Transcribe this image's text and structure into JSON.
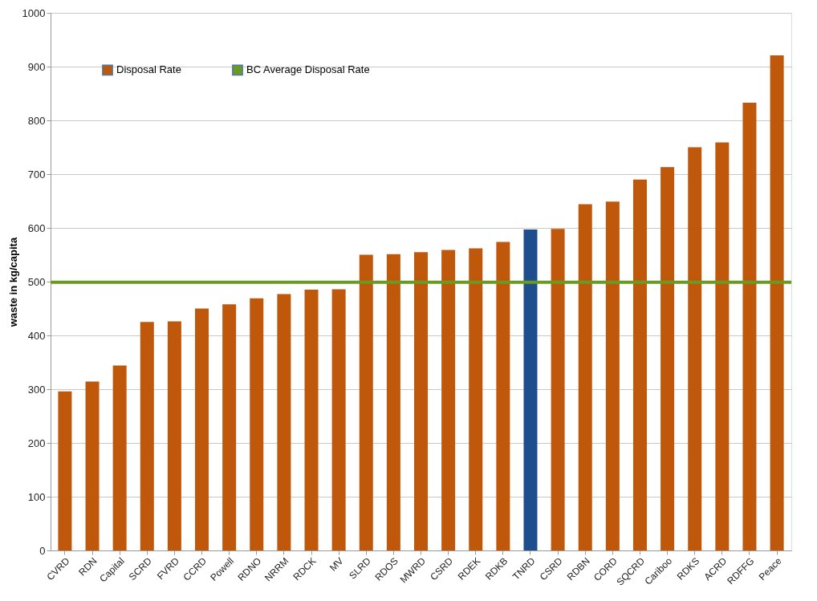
{
  "chart_data": {
    "type": "bar",
    "ylabel": "waste in kg/capita",
    "categories": [
      "CVRD",
      "RDN",
      "Capital",
      "SCRD",
      "FVRD",
      "CCRD",
      "Powell",
      "RDNO",
      "NRRM",
      "RDCK",
      "MV",
      "SLRD",
      "RDOS",
      "MWRD",
      "CSRD",
      "RDEK",
      "RDKB",
      "TNRD",
      "CSRD",
      "RDBN",
      "CORD",
      "SQCRD",
      "Cariboo",
      "RDKS",
      "ACRD",
      "RDFFG",
      "Peace"
    ],
    "series": [
      {
        "name": "Disposal Rate",
        "color": "#c0580c",
        "values": [
          296,
          314,
          344,
          425,
          426,
          450,
          458,
          469,
          477,
          485,
          486,
          550,
          551,
          555,
          559,
          562,
          574,
          597,
          598,
          644,
          649,
          690,
          713,
          750,
          759,
          833,
          921
        ],
        "colors": [
          "#c0580c",
          "#c0580c",
          "#c0580c",
          "#c0580c",
          "#c0580c",
          "#c0580c",
          "#c0580c",
          "#c0580c",
          "#c0580c",
          "#c0580c",
          "#c0580c",
          "#c0580c",
          "#c0580c",
          "#c0580c",
          "#c0580c",
          "#c0580c",
          "#c0580c",
          "#1f4e8c",
          "#c0580c",
          "#c0580c",
          "#c0580c",
          "#c0580c",
          "#c0580c",
          "#c0580c",
          "#c0580c",
          "#c0580c",
          "#c0580c"
        ]
      }
    ],
    "ref_lines": [
      {
        "axis": "y",
        "value": 499,
        "label": "BC Average Disposal Rate",
        "color": "#6a9a22"
      }
    ],
    "ylim": [
      0,
      1000
    ],
    "yticks": [
      0,
      100,
      200,
      300,
      400,
      500,
      600,
      700,
      800,
      900,
      1000
    ],
    "grid": "y",
    "legend": "top left"
  }
}
